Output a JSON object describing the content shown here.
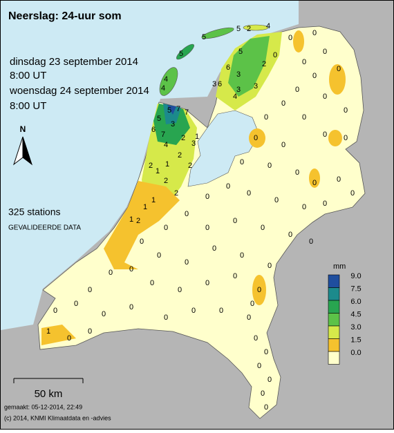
{
  "title": "Neerslag: 24-uur som",
  "period": {
    "start_date": "dinsdag 23 september 2014",
    "start_time": "8:00 UT",
    "end_date": "woensdag 24 september 2014",
    "end_time": "8:00 UT"
  },
  "north": "N",
  "station_count": "325 stations",
  "status": "GEVALIDEERDE DATA",
  "legend": {
    "title": "mm",
    "ticks": [
      {
        "value": 9,
        "label": "9.0"
      },
      {
        "value": 7.5,
        "label": "7.5"
      },
      {
        "value": 6,
        "label": "6.0"
      },
      {
        "value": 4.5,
        "label": "4.5"
      },
      {
        "value": 3,
        "label": "3.0"
      },
      {
        "value": 1.5,
        "label": "1.5"
      },
      {
        "value": 0,
        "label": "0.0"
      }
    ],
    "colors": [
      "#1f4e9e",
      "#1c8a8c",
      "#28a550",
      "#5cc248",
      "#d6e94a",
      "#f5c22e",
      "#ffffcc"
    ]
  },
  "scale": "50 km",
  "footer": {
    "made": "gemaakt: 05-12-2014, 22:49",
    "copyright": "(c) 2014, KNMI Klimaatdata en -advies"
  },
  "stations": [
    5,
    4,
    4,
    5,
    5,
    4,
    2,
    5,
    6,
    3,
    3,
    6,
    3,
    4,
    3,
    2,
    0,
    5,
    7,
    7,
    5,
    6,
    7,
    3,
    4,
    2,
    3,
    2,
    2,
    1,
    2,
    1,
    1,
    2,
    2,
    1,
    1,
    2,
    1,
    0,
    0,
    0,
    0,
    0,
    0,
    0,
    0,
    0,
    0,
    0,
    0,
    0,
    0,
    0,
    0,
    0,
    0,
    0,
    0,
    0,
    0,
    0,
    0,
    0,
    0,
    0,
    0,
    0,
    0,
    0,
    0,
    0,
    0,
    0,
    0,
    0,
    0,
    0,
    0,
    0,
    0,
    0,
    0,
    0,
    0,
    0,
    0,
    0,
    0,
    0,
    0,
    0,
    0,
    0,
    0,
    0,
    1,
    0,
    0,
    0,
    0,
    0,
    0,
    0,
    0,
    0
  ]
}
